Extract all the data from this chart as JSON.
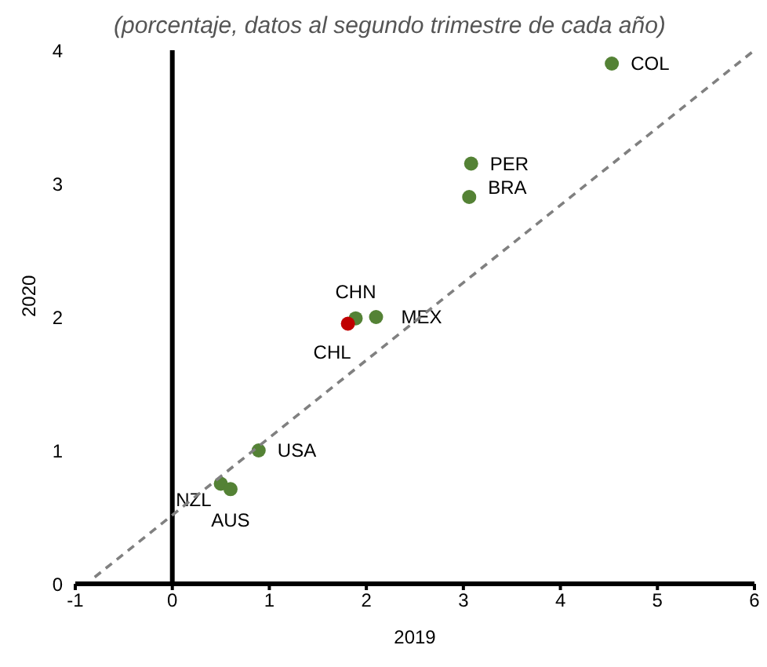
{
  "chart_data": {
    "type": "scatter",
    "title": "(porcentaje, datos al segundo trimestre de cada año)",
    "xlabel": "2019",
    "ylabel": "2020",
    "xlim": [
      -1,
      6
    ],
    "xticks": [
      -1,
      0,
      1,
      2,
      3,
      4,
      5,
      6
    ],
    "ylim": [
      0,
      4
    ],
    "yticks": [
      0,
      1,
      2,
      3,
      4
    ],
    "marker": "circle",
    "ref_lines": [
      {
        "axis": "x",
        "value": 0,
        "color": "#000000"
      }
    ],
    "series": [
      {
        "x": [
          4.53,
          3.08,
          3.06,
          1.89,
          2.1,
          1.81,
          0.89,
          0.5,
          0.6
        ],
        "values": [
          3.9,
          3.15,
          2.9,
          1.99,
          2.0,
          1.95,
          1.0,
          0.75,
          0.71
        ],
        "colors": [
          "#548235",
          "#548235",
          "#548235",
          "#548235",
          "#548235",
          "#c00000",
          "#548235",
          "#548235",
          "#548235"
        ],
        "value_labels": [
          "COL",
          "PER",
          "BRA",
          "CHN",
          "MEX",
          "CHL",
          "USA",
          "NZL",
          "AUS"
        ]
      },
      {
        "type": "line",
        "x": [
          -0.8,
          6
        ],
        "values": [
          0.05,
          4
        ],
        "color": "#808080",
        "line_style": "dashed",
        "marker": "none"
      }
    ]
  }
}
